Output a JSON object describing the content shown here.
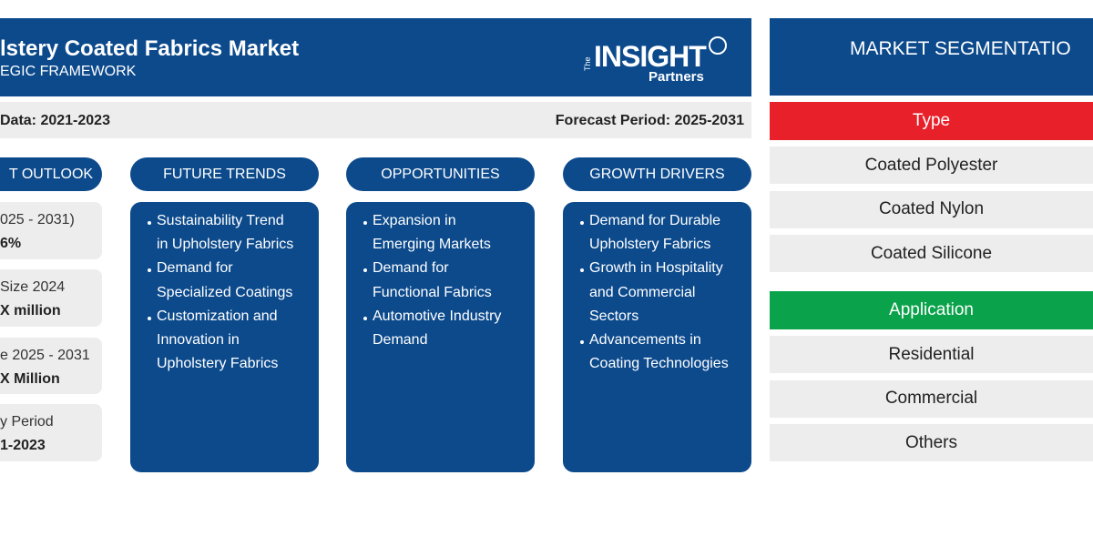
{
  "header": {
    "title": "lstery Coated Fabrics Market",
    "subtitle": "EGIC FRAMEWORK",
    "logo": {
      "top": "The",
      "main": "INSIGHT",
      "sub": "Partners"
    }
  },
  "period_bar": {
    "historic": "Data: 2021-2023",
    "forecast": "Forecast Period: 2025-2031"
  },
  "outlook": {
    "heading": "T OUTLOOK",
    "boxes": [
      [
        "025 - 2031)",
        "6%"
      ],
      [
        "Size 2024",
        "X million"
      ],
      [
        "e 2025 - 2031",
        "X Million"
      ],
      [
        "y Period",
        "1-2023"
      ]
    ]
  },
  "columns": [
    {
      "heading": "FUTURE TRENDS",
      "items": [
        [
          "Sustainability Trend",
          "in Upholstery Fabrics"
        ],
        [
          "Demand for",
          "Specialized Coatings"
        ],
        [
          "Customization and",
          "Innovation in",
          "Upholstery Fabrics"
        ]
      ]
    },
    {
      "heading": "OPPORTUNITIES",
      "items": [
        [
          "Expansion in",
          "Emerging Markets"
        ],
        [
          "Demand for",
          "Functional Fabrics"
        ],
        [
          "Automotive Industry",
          "Demand"
        ]
      ]
    },
    {
      "heading": "GROWTH DRIVERS",
      "items": [
        [
          "Demand for Durable",
          "Upholstery Fabrics"
        ],
        [
          "Growth in Hospitality",
          "and Commercial",
          "Sectors"
        ],
        [
          "Advancements in",
          "Coating Technologies"
        ]
      ]
    }
  ],
  "segmentation": {
    "heading": "MARKET SEGMENTATIO",
    "groups": [
      {
        "name": "Type",
        "items": [
          "Coated Polyester",
          "Coated Nylon",
          "Coated Silicone"
        ]
      },
      {
        "name": "Application",
        "items": [
          "Residential",
          "Commercial",
          "Others"
        ]
      }
    ]
  }
}
